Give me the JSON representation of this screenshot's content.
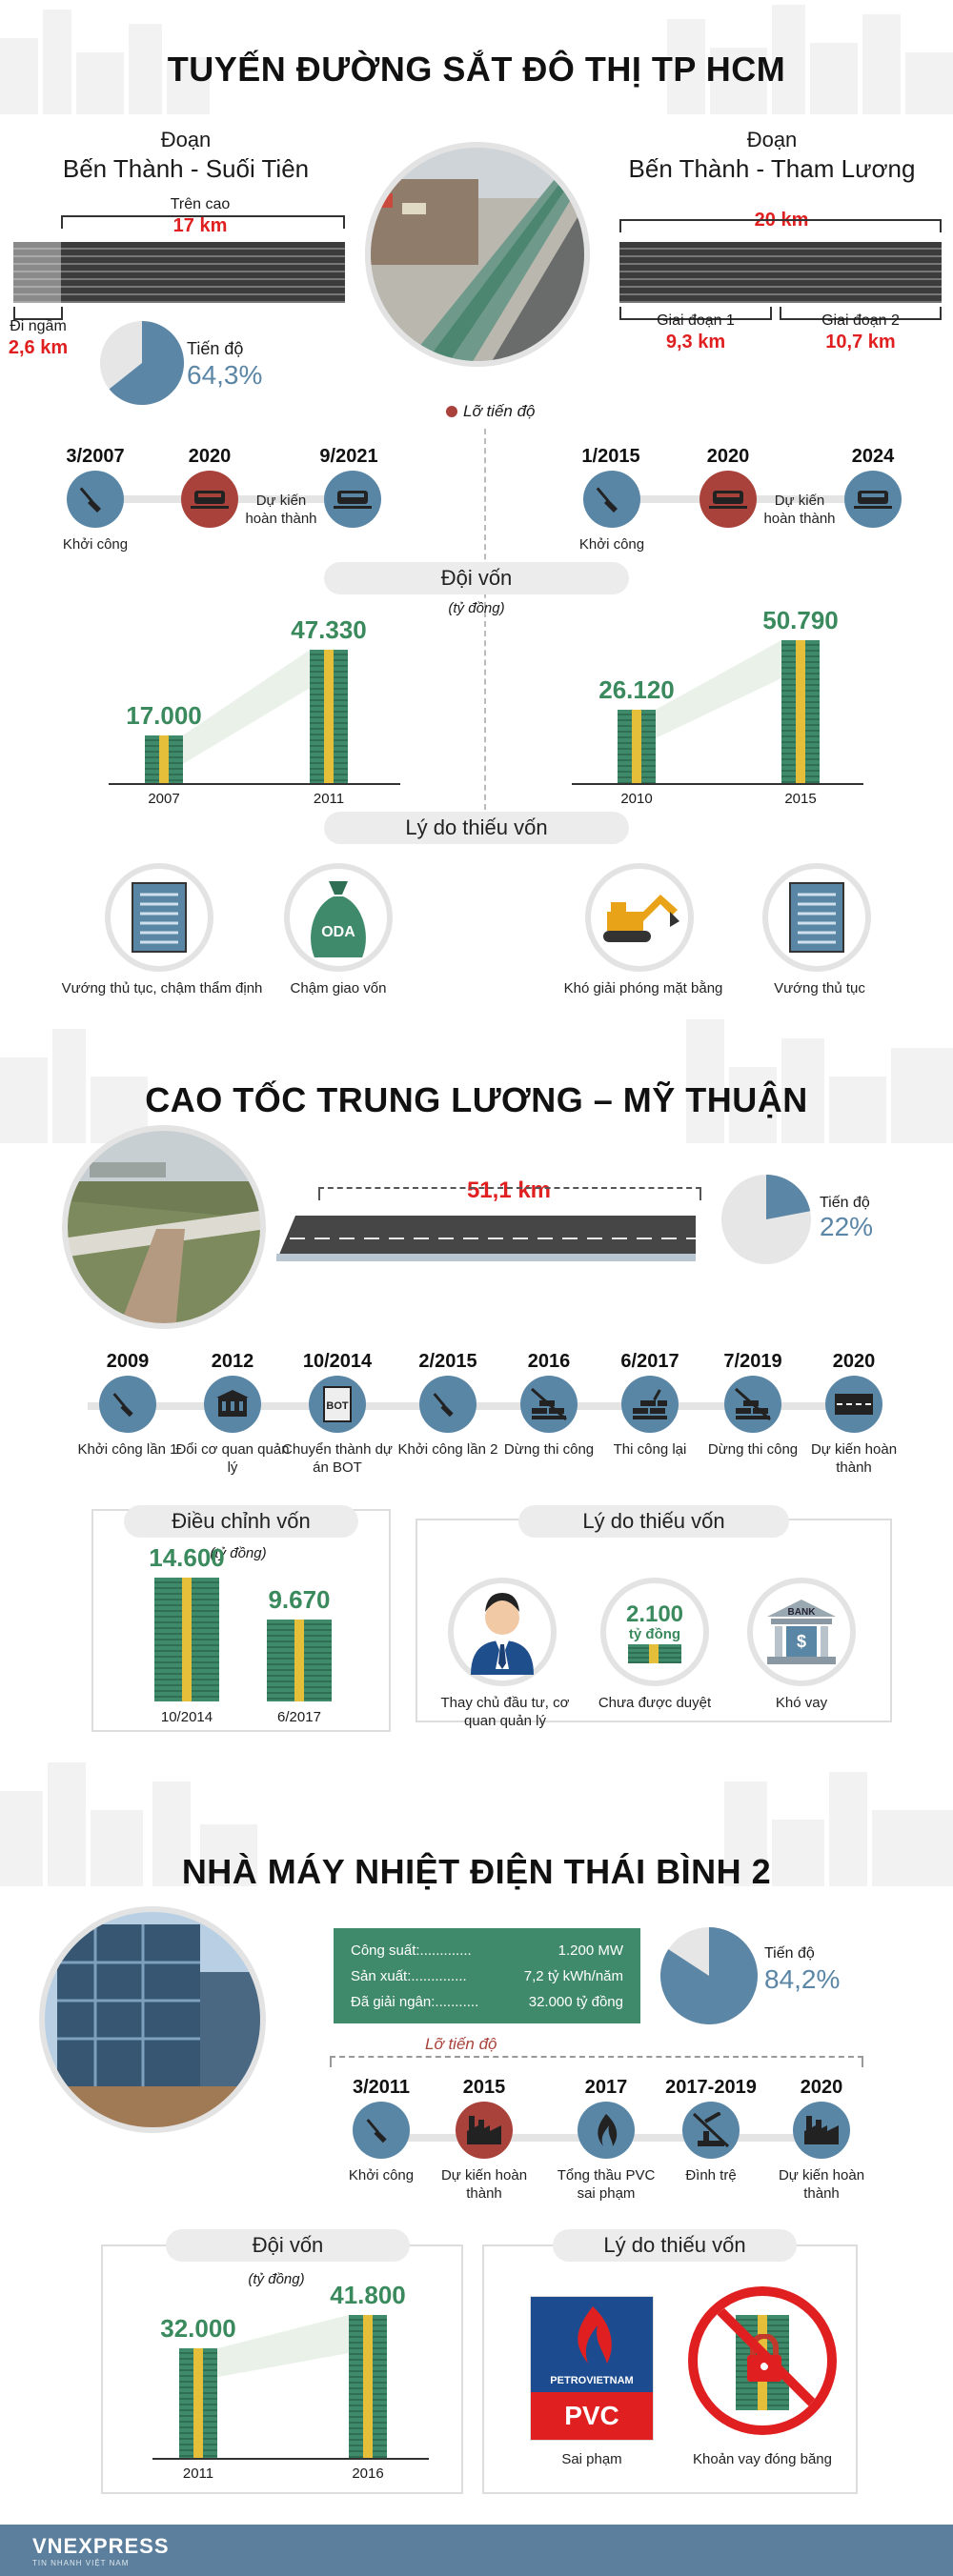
{
  "s1": {
    "title": "TUYẾN ĐƯỜNG SẮT ĐÔ THỊ TP HCM",
    "left": {
      "doan": "Đoạn",
      "name": "Bến Thành - Suối Tiên",
      "tren_cao": "Trên cao",
      "tren_cao_km": "17 km",
      "di_ngam": "Đi ngầm",
      "di_ngam_km": "2,6 km",
      "tien_do_label": "Tiến độ",
      "tien_do_value": "64,3%",
      "progress": 0.643
    },
    "right": {
      "doan": "Đoạn",
      "name": "Bến Thành - Tham Lương",
      "total_km": "20 km",
      "gd1": "Giai đoạn 1",
      "gd1_km": "9,3 km",
      "gd2": "Giai đoạn 2",
      "gd2_km": "10,7 km"
    },
    "lo_tien_do": "Lỡ tiến độ",
    "timeline_left": [
      {
        "year": "3/2007",
        "label": "Khởi công"
      },
      {
        "year": "2020",
        "label": ""
      },
      {
        "year": "9/2021",
        "label": "Dự kiến hoàn thành"
      }
    ],
    "timeline_right": [
      {
        "year": "1/2015",
        "label": "Khởi công"
      },
      {
        "year": "2020",
        "label": ""
      },
      {
        "year": "2024",
        "label": "Dự kiến hoàn thành"
      }
    ],
    "doi_von": "Đội vốn",
    "unit": "(tỷ đồng)",
    "capital_left": [
      {
        "year": "2007",
        "value": "17.000",
        "v": 17000
      },
      {
        "year": "2011",
        "value": "47.330",
        "v": 47330
      }
    ],
    "capital_right": [
      {
        "year": "2010",
        "value": "26.120",
        "v": 26120
      },
      {
        "year": "2015",
        "value": "50.790",
        "v": 50790
      }
    ],
    "ly_do": "Lý do thiếu vốn",
    "reasons": [
      {
        "label": "Vướng thủ tục, chậm thẩm định",
        "icon": "document-icon"
      },
      {
        "label": "Chậm giao vốn",
        "icon": "oda-bag-icon",
        "text": "ODA"
      },
      {
        "label": "Khó giải phóng mặt bằng",
        "icon": "excavator-icon"
      },
      {
        "label": "Vướng thủ tục",
        "icon": "document-icon"
      }
    ]
  },
  "s2": {
    "title": "CAO TỐC TRUNG LƯƠNG – MỸ THUẬN",
    "km": "51,1 km",
    "tien_do_label": "Tiến độ",
    "tien_do_value": "22%",
    "progress": 0.22,
    "timeline": [
      {
        "year": "2009",
        "label": "Khởi công lần 1",
        "icon": "shovel-icon"
      },
      {
        "year": "2012",
        "label": "Đổi cơ quan quản lý",
        "icon": "building-icon"
      },
      {
        "year": "10/2014",
        "label": "Chuyển thành dự án BOT",
        "icon": "bot-icon"
      },
      {
        "year": "2/2015",
        "label": "Khởi công lần 2",
        "icon": "shovel-icon"
      },
      {
        "year": "2016",
        "label": "Dừng thi công",
        "icon": "stopped-bricks-icon"
      },
      {
        "year": "6/2017",
        "label": "Thi công lại",
        "icon": "bricks-icon"
      },
      {
        "year": "7/2019",
        "label": "Dừng thi công",
        "icon": "stopped-bricks-icon"
      },
      {
        "year": "2020",
        "label": "Dự kiến hoàn thành",
        "icon": "road-icon"
      }
    ],
    "dieu_chinh": "Điều chỉnh vốn",
    "unit": "(tỷ đồng)",
    "capital": [
      {
        "year": "10/2014",
        "value": "14.600",
        "v": 14600
      },
      {
        "year": "6/2017",
        "value": "9.670",
        "v": 9670
      }
    ],
    "ly_do": "Lý do thiếu vốn",
    "reasons": [
      {
        "label": "Thay chủ đầu tư, cơ quan quản lý",
        "icon": "businessman-icon"
      },
      {
        "label": "Chưa được duyệt",
        "icon": "money-stack-icon",
        "amount": "2.100",
        "amount_unit": "tỷ đồng"
      },
      {
        "label": "Khó vay",
        "icon": "bank-icon",
        "bank_text": "BANK"
      }
    ]
  },
  "s3": {
    "title": "NHÀ MÁY NHIỆT ĐIỆN THÁI BÌNH 2",
    "specs": [
      {
        "k": "Công suất:.............",
        "v": "1.200 MW"
      },
      {
        "k": "Sản xuất:..............",
        "v": "7,2 tỷ kWh/năm"
      },
      {
        "k": "Đã giải ngân:...........",
        "v": "32.000 tỷ đồng"
      }
    ],
    "tien_do_label": "Tiến độ",
    "tien_do_value": "84,2%",
    "progress": 0.842,
    "lo_tien_do": "Lỡ tiến độ",
    "timeline": [
      {
        "year": "3/2011",
        "label": "Khởi công",
        "icon": "shovel-icon"
      },
      {
        "year": "2015",
        "label": "Dự kiến hoàn thành",
        "icon": "factory-icon"
      },
      {
        "year": "2017",
        "label": "Tổng thầu PVC sai phạm",
        "icon": "flame-icon"
      },
      {
        "year": "2017-2019",
        "label": "Đình trệ",
        "icon": "stopped-crane-icon"
      },
      {
        "year": "2020",
        "label": "Dự kiến hoàn thành",
        "icon": "factory-icon"
      }
    ],
    "doi_von": "Đội vốn",
    "unit": "(tỷ đồng)",
    "capital": [
      {
        "year": "2011",
        "value": "32.000",
        "v": 32000
      },
      {
        "year": "2016",
        "value": "41.800",
        "v": 41800
      }
    ],
    "ly_do": "Lý do thiếu vốn",
    "pv_top": "PETROVIETNAM",
    "pv_bottom": "PVC",
    "reasons": [
      {
        "label": "Sai phạm",
        "icon": "petrovietnam-logo-icon"
      },
      {
        "label": "Khoản vay đóng băng",
        "icon": "locked-money-icon"
      }
    ]
  },
  "footer": {
    "brand": "VNEXPRESS",
    "sub": "TIN NHANH VIỆT NAM"
  },
  "colors": {
    "accent": "#5b86a6",
    "red": "#e02020",
    "delay": "#a8423b",
    "bar": "#3f8a6a",
    "band": "#e6bf3a",
    "footer": "#5b7f9c"
  }
}
